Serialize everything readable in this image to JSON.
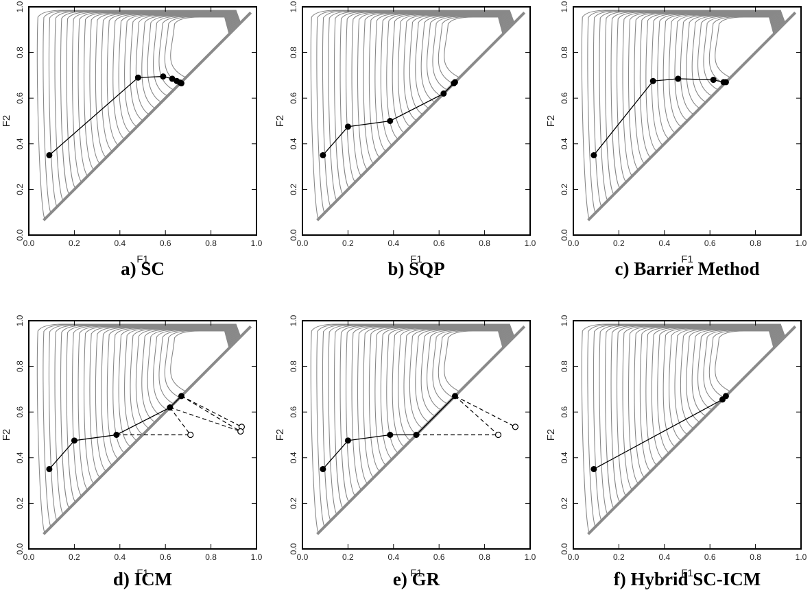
{
  "colors": {
    "contour": "#888888",
    "axis": "#000000",
    "path": "#000000",
    "boundary": "#8a8a8a"
  },
  "chart_data": [
    {
      "type": "line",
      "caption": "a) SC",
      "xlabel": "F1",
      "ylabel": "F2",
      "xlim": [
        0,
        1
      ],
      "ylim": [
        0,
        1
      ],
      "xticks": [
        "0.0",
        "0.2",
        "0.4",
        "0.6",
        "0.8",
        "1.0"
      ],
      "yticks": [
        "0.0",
        "0.2",
        "0.4",
        "0.6",
        "0.8",
        "1.0"
      ],
      "path": [
        [
          0.09,
          0.35
        ],
        [
          0.48,
          0.69
        ],
        [
          0.59,
          0.695
        ],
        [
          0.63,
          0.685
        ],
        [
          0.65,
          0.675
        ],
        [
          0.665,
          0.668
        ],
        [
          0.67,
          0.665
        ]
      ],
      "trial_segments": [],
      "trial_points": []
    },
    {
      "type": "line",
      "caption": "b) SQP",
      "xlabel": "F1",
      "ylabel": "F2",
      "xlim": [
        0,
        1
      ],
      "ylim": [
        0,
        1
      ],
      "xticks": [
        "0.0",
        "0.2",
        "0.4",
        "0.6",
        "0.8",
        "1.0"
      ],
      "yticks": [
        "0.0",
        "0.2",
        "0.4",
        "0.6",
        "0.8",
        "1.0"
      ],
      "path": [
        [
          0.09,
          0.35
        ],
        [
          0.2,
          0.475
        ],
        [
          0.385,
          0.5
        ],
        [
          0.62,
          0.62
        ],
        [
          0.665,
          0.665
        ],
        [
          0.67,
          0.67
        ]
      ],
      "trial_segments": [],
      "trial_points": []
    },
    {
      "type": "line",
      "caption": "c) Barrier Method",
      "xlabel": "F1",
      "ylabel": "F2",
      "xlim": [
        0,
        1
      ],
      "ylim": [
        0,
        1
      ],
      "xticks": [
        "0.0",
        "0.2",
        "0.4",
        "0.6",
        "0.8",
        "1.0"
      ],
      "yticks": [
        "0.0",
        "0.2",
        "0.4",
        "0.6",
        "0.8",
        "1.0"
      ],
      "path": [
        [
          0.09,
          0.35
        ],
        [
          0.35,
          0.675
        ],
        [
          0.46,
          0.685
        ],
        [
          0.615,
          0.68
        ],
        [
          0.66,
          0.67
        ],
        [
          0.67,
          0.67
        ]
      ],
      "trial_segments": [],
      "trial_points": []
    },
    {
      "type": "line",
      "caption": "d) ICM",
      "xlabel": "F1",
      "ylabel": "F2",
      "xlim": [
        0,
        1
      ],
      "ylim": [
        0,
        1
      ],
      "xticks": [
        "0.0",
        "0.2",
        "0.4",
        "0.6",
        "0.8",
        "1.0"
      ],
      "yticks": [
        "0.0",
        "0.2",
        "0.4",
        "0.6",
        "0.8",
        "1.0"
      ],
      "path": [
        [
          0.09,
          0.35
        ],
        [
          0.2,
          0.475
        ],
        [
          0.385,
          0.5
        ],
        [
          0.62,
          0.62
        ],
        [
          0.67,
          0.67
        ]
      ],
      "trial_segments": [
        [
          [
            0.385,
            0.5
          ],
          [
            0.71,
            0.5
          ]
        ],
        [
          [
            0.62,
            0.62
          ],
          [
            0.71,
            0.5
          ]
        ],
        [
          [
            0.62,
            0.62
          ],
          [
            0.93,
            0.515
          ]
        ],
        [
          [
            0.67,
            0.67
          ],
          [
            0.935,
            0.535
          ]
        ],
        [
          [
            0.67,
            0.67
          ],
          [
            0.93,
            0.515
          ]
        ]
      ],
      "trial_points": [
        [
          0.71,
          0.5
        ],
        [
          0.935,
          0.535
        ],
        [
          0.93,
          0.515
        ]
      ]
    },
    {
      "type": "line",
      "caption": "e) GR",
      "xlabel": "F1",
      "ylabel": "F2",
      "xlim": [
        0,
        1
      ],
      "ylim": [
        0,
        1
      ],
      "xticks": [
        "0.0",
        "0.2",
        "0.4",
        "0.6",
        "0.8",
        "1.0"
      ],
      "yticks": [
        "0.0",
        "0.2",
        "0.4",
        "0.6",
        "0.8",
        "1.0"
      ],
      "path": [
        [
          0.09,
          0.35
        ],
        [
          0.2,
          0.475
        ],
        [
          0.385,
          0.5
        ],
        [
          0.5,
          0.5
        ],
        [
          0.67,
          0.67
        ]
      ],
      "trial_segments": [
        [
          [
            0.5,
            0.5
          ],
          [
            0.86,
            0.5
          ]
        ],
        [
          [
            0.67,
            0.67
          ],
          [
            0.86,
            0.5
          ]
        ],
        [
          [
            0.67,
            0.67
          ],
          [
            0.935,
            0.535
          ]
        ]
      ],
      "trial_points": [
        [
          0.86,
          0.5
        ],
        [
          0.935,
          0.535
        ]
      ]
    },
    {
      "type": "line",
      "caption": "f) Hybrid SC-ICM",
      "xlabel": "F1",
      "ylabel": "F2",
      "xlim": [
        0,
        1
      ],
      "ylim": [
        0,
        1
      ],
      "xticks": [
        "0.0",
        "0.2",
        "0.4",
        "0.6",
        "0.8",
        "1.0"
      ],
      "yticks": [
        "0.0",
        "0.2",
        "0.4",
        "0.6",
        "0.8",
        "1.0"
      ],
      "path": [
        [
          0.09,
          0.35
        ],
        [
          0.655,
          0.655
        ],
        [
          0.67,
          0.67
        ]
      ],
      "trial_segments": [],
      "trial_points": []
    }
  ]
}
